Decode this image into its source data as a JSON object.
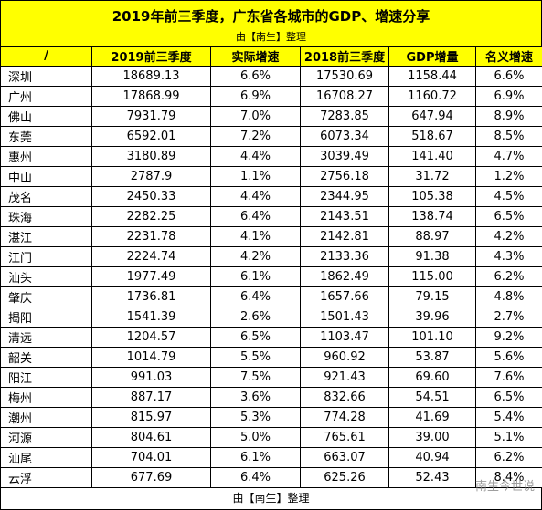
{
  "header": {
    "title": "2019年前三季度，广东省各城市的GDP、增速分享",
    "subtitle": "由【南生】整理"
  },
  "table": {
    "columns": [
      "/",
      "2019前三季度",
      "实际增速",
      "2018前三季度",
      "GDP增量",
      "名义增速"
    ],
    "rows": [
      [
        "深圳",
        "18689.13",
        "6.6%",
        "17530.69",
        "1158.44",
        "6.6%"
      ],
      [
        "广州",
        "17868.99",
        "6.9%",
        "16708.27",
        "1160.72",
        "6.9%"
      ],
      [
        "佛山",
        "7931.79",
        "7.0%",
        "7283.85",
        "647.94",
        "8.9%"
      ],
      [
        "东莞",
        "6592.01",
        "7.2%",
        "6073.34",
        "518.67",
        "8.5%"
      ],
      [
        "惠州",
        "3180.89",
        "4.4%",
        "3039.49",
        "141.40",
        "4.7%"
      ],
      [
        "中山",
        "2787.9",
        "1.1%",
        "2756.18",
        "31.72",
        "1.2%"
      ],
      [
        "茂名",
        "2450.33",
        "4.4%",
        "2344.95",
        "105.38",
        "4.5%"
      ],
      [
        "珠海",
        "2282.25",
        "6.4%",
        "2143.51",
        "138.74",
        "6.5%"
      ],
      [
        "湛江",
        "2231.78",
        "4.1%",
        "2142.81",
        "88.97",
        "4.2%"
      ],
      [
        "江门",
        "2224.74",
        "4.2%",
        "2133.36",
        "91.38",
        "4.3%"
      ],
      [
        "汕头",
        "1977.49",
        "6.1%",
        "1862.49",
        "115.00",
        "6.2%"
      ],
      [
        "肇庆",
        "1736.81",
        "6.4%",
        "1657.66",
        "79.15",
        "4.8%"
      ],
      [
        "揭阳",
        "1541.39",
        "2.6%",
        "1501.43",
        "39.96",
        "2.7%"
      ],
      [
        "清远",
        "1204.57",
        "6.5%",
        "1103.47",
        "101.10",
        "9.2%"
      ],
      [
        "韶关",
        "1014.79",
        "5.5%",
        "960.92",
        "53.87",
        "5.6%"
      ],
      [
        "阳江",
        "991.03",
        "7.5%",
        "921.43",
        "69.60",
        "7.6%"
      ],
      [
        "梅州",
        "887.17",
        "3.6%",
        "832.66",
        "54.51",
        "6.5%"
      ],
      [
        "潮州",
        "815.97",
        "5.3%",
        "774.28",
        "41.69",
        "5.4%"
      ],
      [
        "河源",
        "804.61",
        "5.0%",
        "765.61",
        "39.00",
        "5.1%"
      ],
      [
        "汕尾",
        "704.01",
        "6.1%",
        "663.07",
        "40.94",
        "6.2%"
      ],
      [
        "云浮",
        "677.69",
        "6.4%",
        "625.26",
        "52.43",
        "8.4%"
      ]
    ],
    "footer": "由【南生】整理"
  },
  "watermark": "南生今世说"
}
